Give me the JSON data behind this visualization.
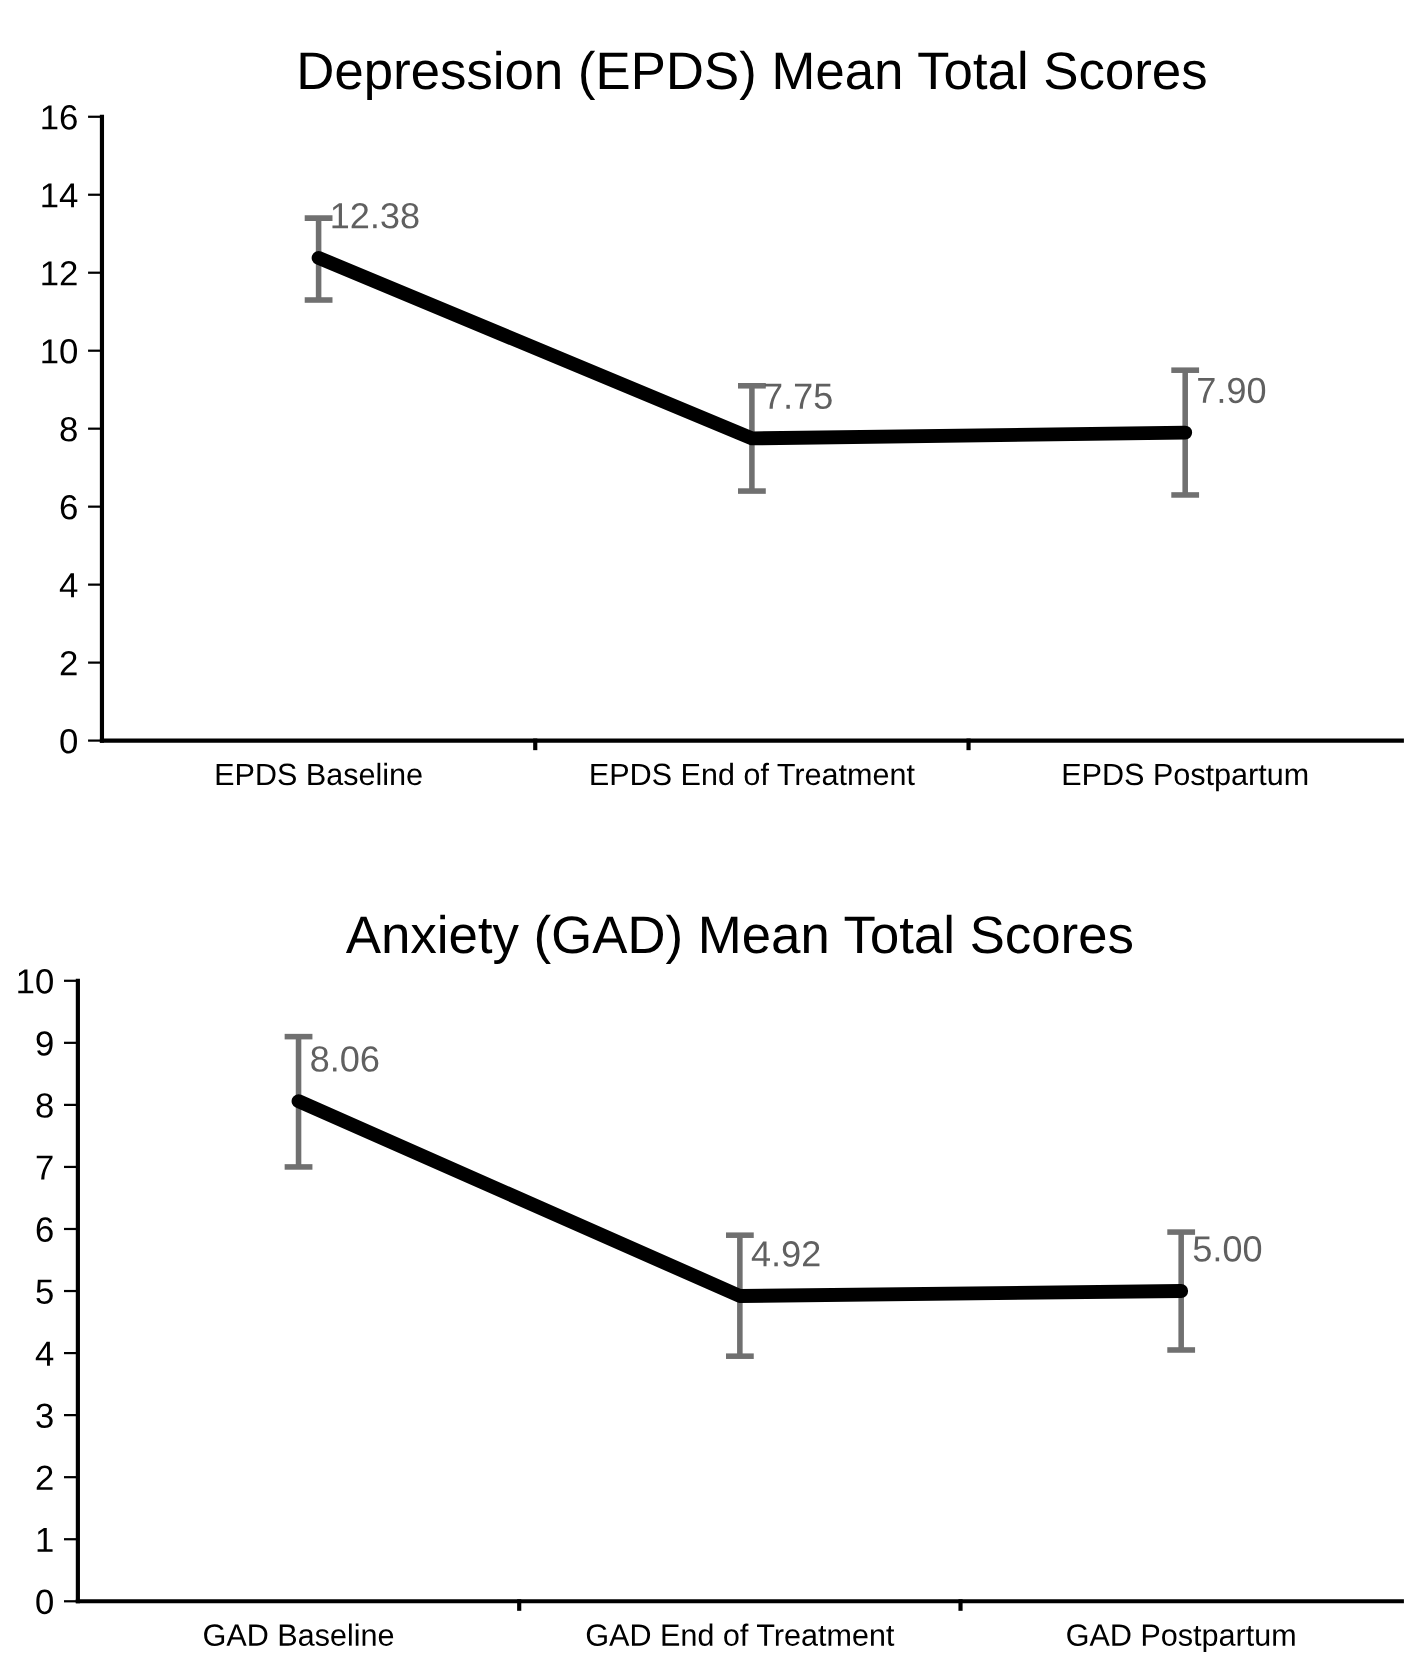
{
  "chart_data": [
    {
      "type": "line",
      "title": "Depression (EPDS) Mean Total Scores",
      "categories": [
        "EPDS Baseline",
        "EPDS End of Treatment",
        "EPDS Postpartum"
      ],
      "series": [
        {
          "color": "#000000",
          "values": [
            12.38,
            7.75,
            7.9
          ],
          "value_labels": [
            "12.38",
            "7.75",
            "7.90"
          ],
          "errors": [
            [
              11.3,
              13.4
            ],
            [
              6.4,
              9.1
            ],
            [
              6.3,
              9.5
            ]
          ]
        }
      ],
      "ylim": [
        0,
        16
      ],
      "yticks": [
        0,
        2,
        4,
        6,
        8,
        10,
        12,
        14,
        16
      ],
      "grid": false,
      "legend": false,
      "marker": "none",
      "line_style": "solid"
    },
    {
      "type": "line",
      "title": "Anxiety (GAD) Mean Total Scores",
      "categories": [
        "GAD Baseline",
        "GAD End of Treatment",
        "GAD Postpartum"
      ],
      "series": [
        {
          "color": "#000000",
          "values": [
            8.06,
            4.92,
            5.0
          ],
          "value_labels": [
            "8.06",
            "4.92",
            "5.00"
          ],
          "errors": [
            [
              7.0,
              9.1
            ],
            [
              3.95,
              5.9
            ],
            [
              4.05,
              5.95
            ]
          ]
        }
      ],
      "ylim": [
        0,
        10
      ],
      "yticks": [
        0,
        1,
        2,
        3,
        4,
        5,
        6,
        7,
        8,
        9,
        10
      ],
      "grid": false,
      "legend": false,
      "marker": "none",
      "line_style": "solid"
    }
  ]
}
